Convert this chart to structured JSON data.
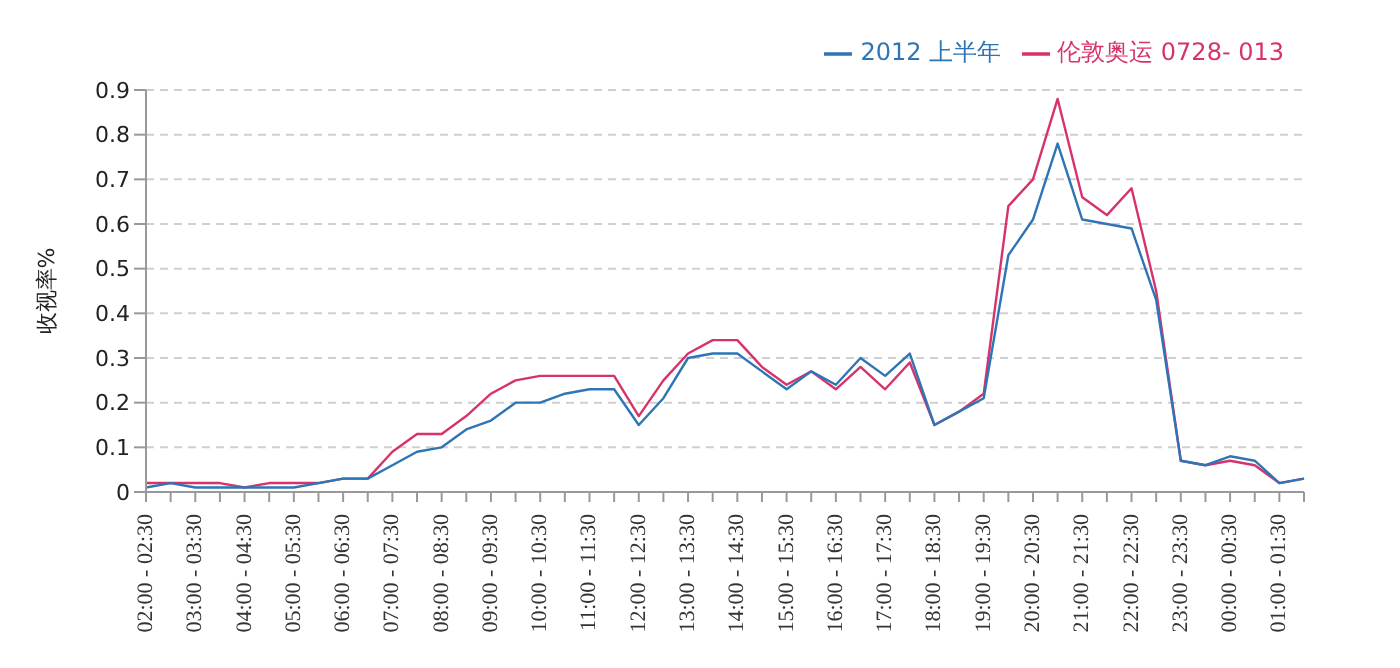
{
  "chart_data": {
    "type": "line",
    "ylabel": "收视率%",
    "categories": [
      "02:00 - 02:30",
      null,
      "03:00 - 03:30",
      null,
      "04:00 - 04:30",
      null,
      "05:00 - 05:30",
      null,
      "06:00 - 06:30",
      null,
      "07:00 - 07:30",
      null,
      "08:00 - 08:30",
      null,
      "09:00 - 09:30",
      null,
      "10:00 - 10:30",
      null,
      "11:00 - 11:30",
      null,
      "12:00 - 12:30",
      null,
      "13:00 - 13:30",
      null,
      "14:00 - 14:30",
      null,
      "15:00 - 15:30",
      null,
      "16:00 - 16:30",
      null,
      "17:00 - 17:30",
      null,
      "18:00 - 18:30",
      null,
      "19:00 - 19:30",
      null,
      "20:00 - 20:30",
      null,
      "21:00 - 21:30",
      null,
      "22:00 - 22:30",
      null,
      "23:00 - 23:30",
      null,
      "00:00 - 00:30",
      null,
      "01:00 - 01:30",
      null
    ],
    "series": [
      {
        "name": "伦敦奥运 0728- 013",
        "color": "#d6336c",
        "values": [
          0.02,
          0.02,
          0.02,
          0.02,
          0.01,
          0.02,
          0.02,
          0.02,
          0.03,
          0.03,
          0.09,
          0.13,
          0.13,
          0.17,
          0.22,
          0.25,
          0.26,
          0.26,
          0.26,
          0.26,
          0.17,
          0.25,
          0.31,
          0.34,
          0.34,
          0.28,
          0.24,
          0.27,
          0.23,
          0.28,
          0.23,
          0.29,
          0.15,
          0.18,
          0.22,
          0.64,
          0.7,
          0.88,
          0.66,
          0.62,
          0.68,
          0.45,
          0.07,
          0.06,
          0.07,
          0.06,
          0.02,
          0.03
        ]
      },
      {
        "name": "2012 上半年",
        "color": "#2e75b6",
        "values": [
          0.01,
          0.02,
          0.01,
          0.01,
          0.01,
          0.01,
          0.01,
          0.02,
          0.03,
          0.03,
          0.06,
          0.09,
          0.1,
          0.14,
          0.16,
          0.2,
          0.2,
          0.22,
          0.23,
          0.23,
          0.15,
          0.21,
          0.3,
          0.31,
          0.31,
          0.27,
          0.23,
          0.27,
          0.24,
          0.3,
          0.26,
          0.31,
          0.15,
          0.18,
          0.21,
          0.53,
          0.61,
          0.78,
          0.61,
          0.6,
          0.59,
          0.43,
          0.07,
          0.06,
          0.08,
          0.07,
          0.02,
          0.03
        ]
      }
    ],
    "ylim": [
      0,
      0.9
    ],
    "yticks": [
      0,
      0.1,
      0.2,
      0.3,
      0.4,
      0.5,
      0.6,
      0.7,
      0.8,
      0.9
    ],
    "grid": "y",
    "legend": "top right",
    "marker": "none",
    "line_style": "solid"
  }
}
